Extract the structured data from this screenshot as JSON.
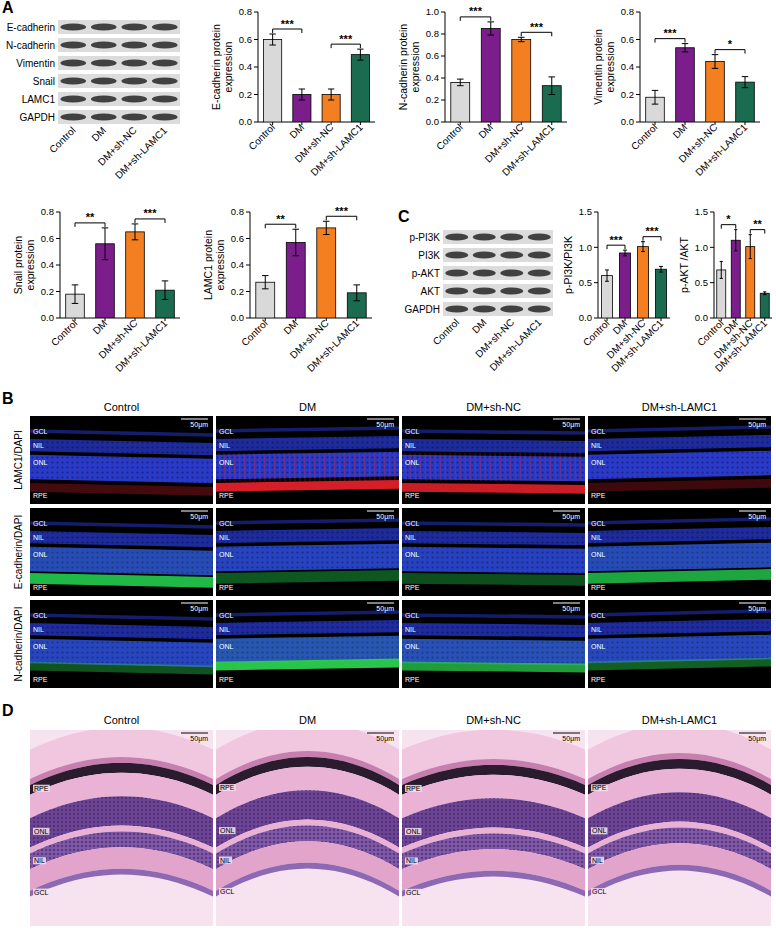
{
  "panel_letters": [
    "A",
    "B",
    "C",
    "D"
  ],
  "blots": [
    {
      "bands": [
        "E-cadherin",
        "N-cadherin",
        "Vimentin",
        "Snail",
        "LAMC1",
        "GAPDH"
      ],
      "lanes": [
        "Control",
        "DM",
        "DM+sh-NC",
        "DM+sh-LAMC1"
      ]
    },
    {
      "bands": [
        "p-PI3K",
        "PI3K",
        "p-AKT",
        "AKT",
        "GAPDH"
      ],
      "lanes": [
        "Control",
        "DM",
        "DM+sh-NC",
        "DM+sh-LAMC1"
      ]
    }
  ],
  "chart_data": [
    {
      "type": "bar",
      "ylabel": "E-cadherin protein expression",
      "categories": [
        "Control",
        "DM",
        "DM+sh-NC",
        "DM+sh-LAMC1"
      ],
      "values": [
        0.6,
        0.2,
        0.2,
        0.49
      ],
      "errors": [
        0.04,
        0.04,
        0.04,
        0.04
      ],
      "colors": [
        "#d9d9d9",
        "#7b1e8c",
        "#f47f20",
        "#1a6b50"
      ],
      "ylim": [
        0,
        0.8
      ],
      "yticks": [
        {
          "value": 0,
          "label": "0.0"
        },
        0.2,
        0.4,
        0.6,
        0.8
      ],
      "annotations": [
        {
          "text": "***",
          "from": "Control",
          "to": "DM"
        },
        {
          "text": "***",
          "from": "DM+sh-NC",
          "to": "DM+sh-LAMC1"
        }
      ]
    },
    {
      "type": "bar",
      "ylabel": "N-cadherin protein expression",
      "categories": [
        "Control",
        "DM",
        "DM+sh-NC",
        "DM+sh-LAMC1"
      ],
      "values": [
        0.36,
        0.85,
        0.75,
        0.33
      ],
      "errors": [
        0.03,
        0.06,
        0.02,
        0.08
      ],
      "colors": [
        "#d9d9d9",
        "#7b1e8c",
        "#f47f20",
        "#1a6b50"
      ],
      "ylim": [
        0,
        1
      ],
      "yticks": [
        {
          "value": 0,
          "label": "0.0"
        },
        0.2,
        0.4,
        0.6,
        0.8,
        {
          "value": 1,
          "label": "1.0"
        }
      ],
      "annotations": [
        {
          "text": "***",
          "from": "Control",
          "to": "DM"
        },
        {
          "text": "***",
          "from": "DM+sh-NC",
          "to": "DM+sh-LAMC1"
        }
      ]
    },
    {
      "type": "bar",
      "ylabel": "Vimentin protein expression",
      "categories": [
        "Control",
        "DM",
        "DM+sh-NC",
        "DM+sh-LAMC1"
      ],
      "values": [
        0.18,
        0.54,
        0.44,
        0.29
      ],
      "errors": [
        0.05,
        0.03,
        0.05,
        0.04
      ],
      "colors": [
        "#d9d9d9",
        "#7b1e8c",
        "#f47f20",
        "#1a6b50"
      ],
      "ylim": [
        0,
        0.8
      ],
      "yticks": [
        {
          "value": 0,
          "label": "0.0"
        },
        0.2,
        0.4,
        0.6,
        0.8
      ],
      "annotations": [
        {
          "text": "***",
          "from": "Control",
          "to": "DM"
        },
        {
          "text": "*",
          "from": "DM+sh-NC",
          "to": "DM+sh-LAMC1"
        }
      ]
    },
    {
      "type": "bar",
      "ylabel": "Snail protein expression",
      "categories": [
        "Control",
        "DM",
        "DM+sh-NC",
        "DM+sh-LAMC1"
      ],
      "values": [
        0.18,
        0.56,
        0.65,
        0.21
      ],
      "errors": [
        0.07,
        0.12,
        0.06,
        0.07
      ],
      "colors": [
        "#d9d9d9",
        "#7b1e8c",
        "#f47f20",
        "#1a6b50"
      ],
      "ylim": [
        0,
        0.8
      ],
      "yticks": [
        {
          "value": 0,
          "label": "0.0"
        },
        0.2,
        0.4,
        0.6,
        0.8
      ],
      "annotations": [
        {
          "text": "**",
          "from": "Control",
          "to": "DM"
        },
        {
          "text": "***",
          "from": "DM+sh-NC",
          "to": "DM+sh-LAMC1"
        }
      ]
    },
    {
      "type": "bar",
      "ylabel": "LAMC1 protein expression",
      "categories": [
        "Control",
        "DM",
        "DM+sh-NC",
        "DM+sh-LAMC1"
      ],
      "values": [
        0.27,
        0.57,
        0.68,
        0.19
      ],
      "errors": [
        0.05,
        0.1,
        0.05,
        0.06
      ],
      "colors": [
        "#d9d9d9",
        "#7b1e8c",
        "#f47f20",
        "#1a6b50"
      ],
      "ylim": [
        0,
        0.8
      ],
      "yticks": [
        {
          "value": 0,
          "label": "0.0"
        },
        0.2,
        0.4,
        0.6,
        0.8
      ],
      "annotations": [
        {
          "text": "**",
          "from": "Control",
          "to": "DM"
        },
        {
          "text": "***",
          "from": "DM+sh-NC",
          "to": "DM+sh-LAMC1"
        }
      ]
    },
    {
      "type": "bar",
      "ylabel": "p-PI3K/PI3K",
      "categories": [
        "Control",
        "DM",
        "DM+sh-NC",
        "DM+sh-LAMC1"
      ],
      "values": [
        0.6,
        0.92,
        1.01,
        0.69
      ],
      "errors": [
        0.08,
        0.04,
        0.07,
        0.04
      ],
      "colors": [
        "#d9d9d9",
        "#7b1e8c",
        "#f47f20",
        "#1a6b50"
      ],
      "ylim": [
        0,
        1.5
      ],
      "yticks": [
        {
          "value": 0,
          "label": "0.0"
        },
        0.5,
        {
          "value": 1,
          "label": "1.0"
        },
        1.5
      ],
      "annotations": [
        {
          "text": "***",
          "from": "Control",
          "to": "DM"
        },
        {
          "text": "***",
          "from": "DM+sh-NC",
          "to": "DM+sh-LAMC1"
        }
      ]
    },
    {
      "type": "bar",
      "ylabel": "p-AKT /AKT",
      "categories": [
        "Control",
        "DM",
        "DM+sh-NC",
        "DM+sh-LAMC1"
      ],
      "values": [
        0.68,
        1.1,
        1.01,
        0.35
      ],
      "errors": [
        0.12,
        0.15,
        0.17,
        0.02
      ],
      "colors": [
        "#d9d9d9",
        "#7b1e8c",
        "#f47f20",
        "#1a6b50"
      ],
      "ylim": [
        0,
        1.5
      ],
      "yticks": [
        {
          "value": 0,
          "label": "0.0"
        },
        0.5,
        {
          "value": 1,
          "label": "1.0"
        },
        1.5
      ],
      "annotations": [
        {
          "text": "*",
          "from": "Control",
          "to": "DM"
        },
        {
          "text": "**",
          "from": "DM+sh-NC",
          "to": "DM+sh-LAMC1"
        }
      ]
    }
  ],
  "immunofluorescence": {
    "columns": [
      "Control",
      "DM",
      "DM+sh-NC",
      "DM+sh-LAMC1"
    ],
    "rows": [
      "LAMC1/DAPI",
      "E-cadherin/DAPI",
      "N-cadherin/DAPI"
    ],
    "layers": [
      "GCL",
      "NIL",
      "ONL",
      "RPE"
    ],
    "scale_bar": "50μm"
  },
  "he_stain": {
    "columns": [
      "Control",
      "DM",
      "DM+sh-NC",
      "DM+sh-LAMC1"
    ],
    "layers": [
      "RPE",
      "ONL",
      "NIL",
      "GCL"
    ],
    "scale_bar": "50μm"
  }
}
